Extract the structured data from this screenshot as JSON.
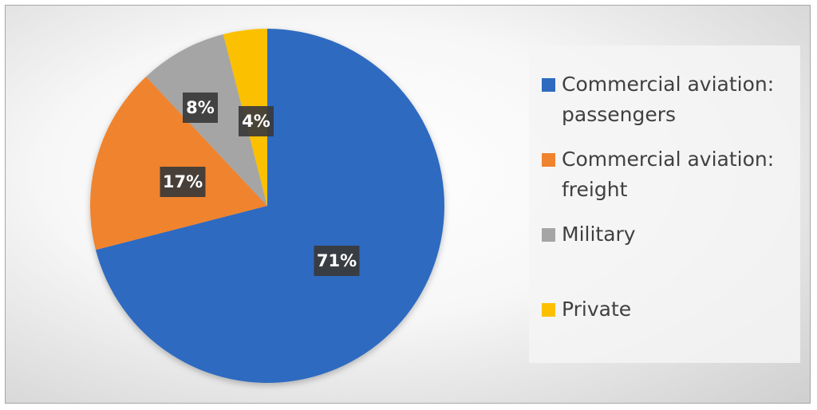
{
  "chart_data": {
    "type": "pie",
    "title": "",
    "categories": [
      "Commercial aviation: passengers",
      "Commercial aviation: freight",
      "Military",
      "Private"
    ],
    "values": [
      71,
      17,
      8,
      4
    ],
    "data_labels": [
      "71%",
      "17%",
      "8%",
      "4%"
    ],
    "colors": [
      "#2e6bc0",
      "#f0832e",
      "#a5a5a5",
      "#fbc000"
    ],
    "start_angle_deg": 0,
    "direction": "clockwise",
    "legend": {
      "placement": "right",
      "entries": [
        {
          "label": "Commercial aviation: passengers",
          "color": "#2e6bc0"
        },
        {
          "label": "Commercial aviation: freight",
          "color": "#f0832e"
        },
        {
          "label": "Military",
          "color": "#a5a5a5"
        },
        {
          "label": "Private",
          "color": "#fbc000"
        }
      ]
    },
    "data_label_style": {
      "background": "#3a3a3a",
      "text_color": "#ffffff"
    }
  }
}
